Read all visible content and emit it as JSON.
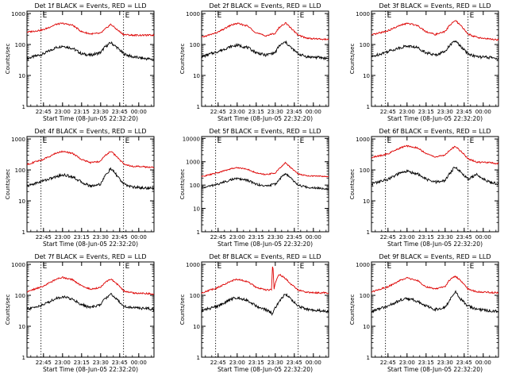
{
  "colors": {
    "events": "#000000",
    "lld": "#dd0000",
    "background": "#ffffff",
    "axes": "#000000"
  },
  "shared": {
    "xlabel": "Start Time (08-Jun-05 22:32:20)",
    "ylabel": "Counts/sec",
    "x_tick_labels": [
      "22:45",
      "23:00",
      "23:15",
      "23:30",
      "23:45",
      "00:00"
    ],
    "y_tick_labels": [
      "1",
      "10",
      "100",
      "1000"
    ],
    "marker_label": "E",
    "marker_lines_at": [
      "22:43",
      "23:48"
    ]
  },
  "chart_data": [
    {
      "type": "line",
      "title": "Det 1f BLACK = Events, RED = LLD",
      "xlabel": "Start Time (08-Jun-05 22:32:20)",
      "ylabel": "Counts/sec",
      "yscale": "log",
      "ylim": [
        1,
        1200
      ],
      "xlim": [
        "22:32",
        "00:12"
      ],
      "series": [
        {
          "name": "Events",
          "color": "#000000",
          "x": [
            "22:32",
            "22:45",
            "22:55",
            "23:00",
            "23:08",
            "23:15",
            "23:22",
            "23:30",
            "23:33",
            "23:38",
            "23:43",
            "23:48",
            "23:55",
            "00:05",
            "00:12"
          ],
          "values": [
            35,
            50,
            80,
            90,
            75,
            50,
            45,
            55,
            80,
            115,
            80,
            50,
            40,
            35,
            33
          ]
        },
        {
          "name": "LLD",
          "color": "#dd0000",
          "x": [
            "22:32",
            "22:45",
            "22:55",
            "23:00",
            "23:08",
            "23:15",
            "23:22",
            "23:30",
            "23:33",
            "23:38",
            "23:43",
            "23:48",
            "23:55",
            "00:05",
            "00:12"
          ],
          "values": [
            250,
            300,
            450,
            480,
            420,
            260,
            220,
            230,
            300,
            450,
            300,
            210,
            200,
            200,
            200
          ]
        }
      ]
    },
    {
      "type": "line",
      "title": "Det 2f BLACK = Events, RED = LLD",
      "xlabel": "Start Time (08-Jun-05 22:32:20)",
      "ylabel": "Counts/sec",
      "yscale": "log",
      "ylim": [
        1,
        1200
      ],
      "xlim": [
        "22:32",
        "00:12"
      ],
      "series": [
        {
          "name": "Events",
          "color": "#000000",
          "x": [
            "22:32",
            "22:45",
            "22:55",
            "23:00",
            "23:08",
            "23:15",
            "23:22",
            "23:30",
            "23:33",
            "23:38",
            "23:43",
            "23:48",
            "23:55",
            "00:05",
            "00:12"
          ],
          "values": [
            40,
            60,
            85,
            95,
            80,
            55,
            45,
            55,
            90,
            120,
            75,
            50,
            40,
            38,
            35
          ]
        },
        {
          "name": "LLD",
          "color": "#dd0000",
          "x": [
            "22:32",
            "22:45",
            "22:55",
            "23:00",
            "23:08",
            "23:15",
            "23:22",
            "23:30",
            "23:33",
            "23:38",
            "23:43",
            "23:48",
            "23:55",
            "00:05",
            "00:12"
          ],
          "values": [
            170,
            250,
            420,
            480,
            400,
            240,
            190,
            230,
            350,
            500,
            320,
            200,
            160,
            150,
            145
          ]
        }
      ]
    },
    {
      "type": "line",
      "title": "Det 3f BLACK = Events, RED = LLD",
      "xlabel": "Start Time (08-Jun-05 22:32:20)",
      "ylabel": "Counts/sec",
      "yscale": "log",
      "ylim": [
        1,
        1200
      ],
      "xlim": [
        "22:32",
        "00:12"
      ],
      "series": [
        {
          "name": "Events",
          "color": "#000000",
          "x": [
            "22:32",
            "22:45",
            "22:55",
            "23:00",
            "23:08",
            "23:15",
            "23:22",
            "23:30",
            "23:33",
            "23:38",
            "23:43",
            "23:48",
            "23:55",
            "00:05",
            "00:12"
          ],
          "values": [
            40,
            60,
            80,
            90,
            80,
            55,
            45,
            60,
            90,
            130,
            80,
            50,
            40,
            38,
            35
          ]
        },
        {
          "name": "LLD",
          "color": "#dd0000",
          "x": [
            "22:32",
            "22:45",
            "22:55",
            "23:00",
            "23:08",
            "23:15",
            "23:22",
            "23:30",
            "23:33",
            "23:38",
            "23:43",
            "23:48",
            "23:55",
            "00:05",
            "00:12"
          ],
          "values": [
            200,
            280,
            420,
            480,
            420,
            260,
            210,
            260,
            400,
            600,
            380,
            220,
            170,
            150,
            140
          ]
        }
      ]
    },
    {
      "type": "line",
      "title": "Det 4f BLACK = Events, RED = LLD",
      "xlabel": "Start Time (08-Jun-05 22:32:20)",
      "ylabel": "Counts/sec",
      "yscale": "log",
      "ylim": [
        1,
        1200
      ],
      "xlim": [
        "22:32",
        "00:12"
      ],
      "series": [
        {
          "name": "Events",
          "color": "#000000",
          "x": [
            "22:32",
            "22:45",
            "22:55",
            "23:00",
            "23:08",
            "23:15",
            "23:22",
            "23:30",
            "23:33",
            "23:38",
            "23:43",
            "23:48",
            "23:55",
            "00:05",
            "00:12"
          ],
          "values": [
            30,
            45,
            60,
            70,
            60,
            40,
            30,
            35,
            60,
            110,
            65,
            35,
            28,
            26,
            25
          ]
        },
        {
          "name": "LLD",
          "color": "#dd0000",
          "x": [
            "22:32",
            "22:45",
            "22:55",
            "23:00",
            "23:08",
            "23:15",
            "23:22",
            "23:30",
            "23:33",
            "23:38",
            "23:43",
            "23:48",
            "23:55",
            "00:05",
            "00:12"
          ],
          "values": [
            150,
            220,
            350,
            400,
            340,
            220,
            170,
            190,
            280,
            400,
            260,
            160,
            130,
            125,
            120
          ]
        }
      ]
    },
    {
      "type": "line",
      "title": "Det 5f BLACK = Events, RED = LLD",
      "xlabel": "Start Time (08-Jun-05 22:32:20)",
      "ylabel": "Counts/sec",
      "yscale": "log",
      "ylim": [
        1,
        12000
      ],
      "xlim": [
        "22:32",
        "00:12"
      ],
      "series": [
        {
          "name": "Events",
          "color": "#000000",
          "x": [
            "22:32",
            "22:45",
            "22:55",
            "23:00",
            "23:08",
            "23:15",
            "23:22",
            "23:30",
            "23:33",
            "23:38",
            "23:43",
            "23:48",
            "23:55",
            "00:05",
            "00:12"
          ],
          "values": [
            75,
            110,
            170,
            190,
            160,
            110,
            90,
            110,
            170,
            320,
            180,
            100,
            80,
            75,
            70
          ]
        },
        {
          "name": "LLD",
          "color": "#dd0000",
          "x": [
            "22:32",
            "22:45",
            "22:55",
            "23:00",
            "23:08",
            "23:15",
            "23:22",
            "23:30",
            "23:33",
            "23:38",
            "23:43",
            "23:48",
            "23:55",
            "00:05",
            "00:12"
          ],
          "values": [
            230,
            340,
            500,
            560,
            480,
            330,
            280,
            330,
            500,
            900,
            520,
            300,
            250,
            240,
            230
          ]
        }
      ]
    },
    {
      "type": "line",
      "title": "Det 6f BLACK = Events, RED = LLD",
      "xlabel": "Start Time (08-Jun-05 22:32:20)",
      "ylabel": "Counts/sec",
      "yscale": "log",
      "ylim": [
        1,
        1200
      ],
      "xlim": [
        "22:32",
        "00:12"
      ],
      "series": [
        {
          "name": "Events",
          "color": "#000000",
          "x": [
            "22:32",
            "22:45",
            "22:55",
            "23:00",
            "23:08",
            "23:15",
            "23:22",
            "23:30",
            "23:33",
            "23:38",
            "23:43",
            "23:48",
            "23:55",
            "00:05",
            "00:12"
          ],
          "values": [
            35,
            50,
            80,
            90,
            75,
            50,
            40,
            45,
            70,
            130,
            80,
            50,
            70,
            40,
            35
          ]
        },
        {
          "name": "LLD",
          "color": "#dd0000",
          "x": [
            "22:32",
            "22:45",
            "22:55",
            "23:00",
            "23:08",
            "23:15",
            "23:22",
            "23:30",
            "23:33",
            "23:38",
            "23:43",
            "23:48",
            "23:55",
            "00:05",
            "00:12"
          ],
          "values": [
            250,
            330,
            520,
            600,
            520,
            340,
            260,
            300,
            420,
            580,
            380,
            230,
            180,
            170,
            160
          ]
        }
      ]
    },
    {
      "type": "line",
      "title": "Det 7f BLACK = Events, RED = LLD",
      "xlabel": "Start Time (08-Jun-05 22:32:20)",
      "ylabel": "Counts/sec",
      "yscale": "log",
      "ylim": [
        1,
        1200
      ],
      "xlim": [
        "22:32",
        "00:12"
      ],
      "series": [
        {
          "name": "Events",
          "color": "#000000",
          "x": [
            "22:32",
            "22:45",
            "22:55",
            "23:00",
            "23:08",
            "23:15",
            "23:22",
            "23:30",
            "23:33",
            "23:38",
            "23:43",
            "23:48",
            "23:55",
            "00:05",
            "00:12"
          ],
          "values": [
            35,
            50,
            80,
            90,
            75,
            50,
            40,
            50,
            75,
            110,
            75,
            45,
            40,
            38,
            35
          ]
        },
        {
          "name": "LLD",
          "color": "#dd0000",
          "x": [
            "22:32",
            "22:45",
            "22:55",
            "23:00",
            "23:08",
            "23:15",
            "23:22",
            "23:30",
            "23:33",
            "23:38",
            "23:43",
            "23:48",
            "23:55",
            "00:05",
            "00:12"
          ],
          "values": [
            130,
            200,
            330,
            380,
            320,
            200,
            160,
            180,
            260,
            340,
            230,
            140,
            120,
            115,
            110
          ]
        }
      ]
    },
    {
      "type": "line",
      "title": "Det 8f BLACK = Events, RED = LLD",
      "xlabel": "Start Time (08-Jun-05 22:32:20)",
      "ylabel": "Counts/sec",
      "yscale": "log",
      "ylim": [
        1,
        1200
      ],
      "xlim": [
        "22:32",
        "00:12"
      ],
      "series": [
        {
          "name": "Events",
          "color": "#000000",
          "x": [
            "22:32",
            "22:45",
            "22:55",
            "23:00",
            "23:08",
            "23:15",
            "23:22",
            "23:28",
            "23:30",
            "23:33",
            "23:38",
            "23:43",
            "23:48",
            "23:55",
            "00:05",
            "00:12"
          ],
          "values": [
            32,
            45,
            75,
            85,
            70,
            45,
            35,
            25,
            40,
            60,
            115,
            70,
            45,
            35,
            32,
            30
          ]
        },
        {
          "name": "LLD",
          "color": "#dd0000",
          "x": [
            "22:32",
            "22:45",
            "22:55",
            "23:00",
            "23:08",
            "23:15",
            "23:22",
            "23:27",
            "23:28",
            "23:29",
            "23:30",
            "23:33",
            "23:38",
            "23:43",
            "23:48",
            "23:55",
            "00:05",
            "00:12"
          ],
          "values": [
            120,
            180,
            290,
            330,
            280,
            180,
            150,
            150,
            1200,
            160,
            250,
            480,
            350,
            220,
            150,
            125,
            120,
            120
          ]
        }
      ]
    },
    {
      "type": "line",
      "title": "Det 9f BLACK = Events, RED = LLD",
      "xlabel": "Start Time (08-Jun-05 22:32:20)",
      "ylabel": "Counts/sec",
      "yscale": "log",
      "ylim": [
        1,
        1200
      ],
      "xlim": [
        "22:32",
        "00:12"
      ],
      "series": [
        {
          "name": "Events",
          "color": "#000000",
          "x": [
            "22:32",
            "22:45",
            "22:55",
            "23:00",
            "23:08",
            "23:15",
            "23:22",
            "23:30",
            "23:33",
            "23:38",
            "23:43",
            "23:48",
            "23:55",
            "00:05",
            "00:12"
          ],
          "values": [
            30,
            45,
            70,
            80,
            65,
            45,
            35,
            40,
            65,
            130,
            70,
            45,
            35,
            32,
            30
          ]
        },
        {
          "name": "LLD",
          "color": "#dd0000",
          "x": [
            "22:32",
            "22:45",
            "22:55",
            "23:00",
            "23:08",
            "23:15",
            "23:22",
            "23:30",
            "23:33",
            "23:38",
            "23:43",
            "23:48",
            "23:55",
            "00:05",
            "00:12"
          ],
          "values": [
            130,
            190,
            310,
            360,
            300,
            190,
            160,
            190,
            300,
            420,
            280,
            160,
            130,
            125,
            120
          ]
        }
      ]
    }
  ]
}
